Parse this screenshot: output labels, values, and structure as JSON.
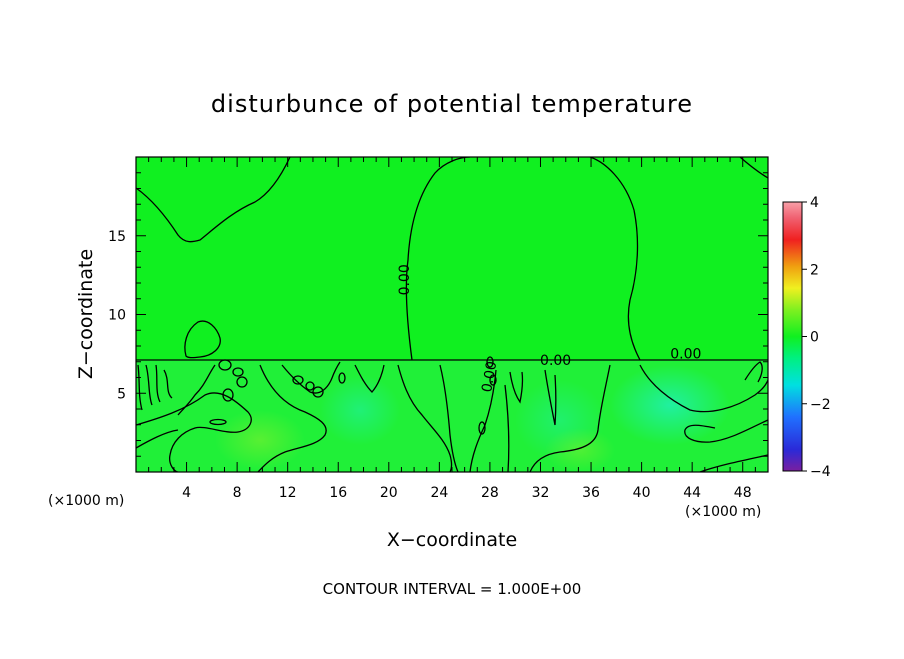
{
  "chart_data": {
    "type": "heatmap",
    "title": "disturbunce of potential temperature",
    "xlabel": "X−coordinate",
    "ylabel": "Z−coordinate",
    "x_unit": "(×1000 m)",
    "y_unit": "(×1000 m)",
    "xlim": [
      0,
      50
    ],
    "ylim": [
      0,
      20
    ],
    "x_ticks": [
      4,
      8,
      12,
      16,
      20,
      24,
      28,
      32,
      36,
      40,
      44,
      48
    ],
    "x_tick_labels": [
      "4",
      "8",
      "12",
      "16",
      "20",
      "24",
      "28",
      "32",
      "36",
      "40",
      "44",
      "48"
    ],
    "y_ticks": [
      5,
      10,
      15
    ],
    "y_tick_labels": [
      "5",
      "10",
      "15"
    ],
    "colorbar": {
      "range": [
        -4,
        4
      ],
      "ticks": [
        4,
        2,
        0,
        -2,
        -4
      ],
      "tick_labels": [
        "4",
        "2",
        "0",
        "−2",
        "−4"
      ]
    },
    "contour_labels": [
      {
        "text": "0.00",
        "x": 21.6,
        "z": 12.2,
        "rotate": -90
      },
      {
        "text": "0.00",
        "x": 33.2,
        "z": 6.8,
        "rotate": 0
      },
      {
        "text": "0.00",
        "x": 43.5,
        "z": 7.2,
        "rotate": 0
      },
      {
        "text": "0.00",
        "x": 28.3,
        "z": 6.0,
        "rotate": -80
      }
    ],
    "contour_interval_text": "CONTOUR INTERVAL = 1.000E+00",
    "grid": false,
    "legend": "colorbar-right"
  }
}
